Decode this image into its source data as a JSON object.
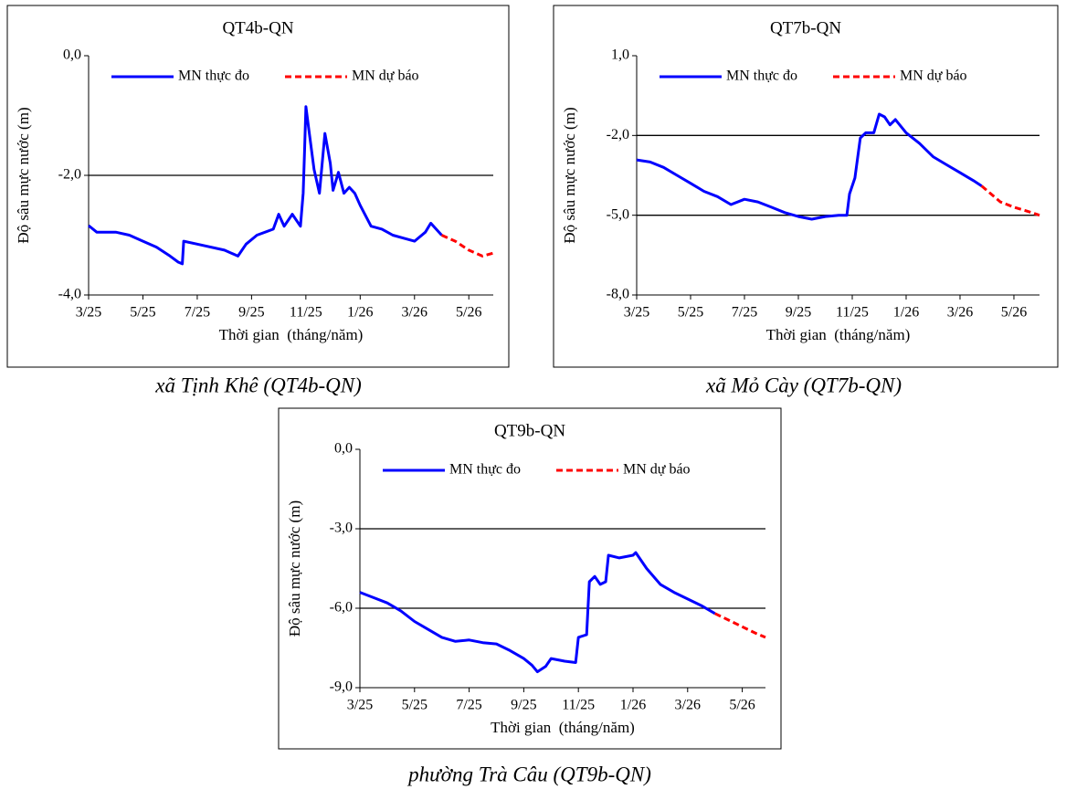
{
  "chart_data": [
    {
      "type": "line",
      "title": "QT4b-QN",
      "caption": "xã Tịnh Khê (QT4b-QN)",
      "x_label": "Thời gian  (tháng/năm)",
      "y_label": "Độ sâu mực nước (m)",
      "xlim": [
        0,
        14.9
      ],
      "xticks": [
        {
          "value": 0,
          "label": "3/25"
        },
        {
          "value": 2,
          "label": "5/25"
        },
        {
          "value": 4,
          "label": "7/25"
        },
        {
          "value": 6,
          "label": "9/25"
        },
        {
          "value": 8,
          "label": "11/25"
        },
        {
          "value": 10,
          "label": "1/26"
        },
        {
          "value": 12,
          "label": "3/26"
        },
        {
          "value": 14,
          "label": "5/26"
        }
      ],
      "ylim": [
        -4,
        0
      ],
      "yticks": [
        {
          "value": -4,
          "label": "-4,0"
        },
        {
          "value": -2,
          "label": "-2,0"
        },
        {
          "value": 0,
          "label": "0,0"
        }
      ],
      "grid": true,
      "series": [
        {
          "name": "MN thực đo",
          "color": "#0000ff",
          "style": "solid",
          "x": [
            0,
            0.3,
            1,
            1.5,
            2,
            2.5,
            3,
            3.3,
            3.45,
            3.5,
            4,
            5,
            5.5,
            5.8,
            6.2,
            6.8,
            7,
            7.2,
            7.5,
            7.8,
            7.9,
            7.95,
            8.0,
            8.1,
            8.3,
            8.5,
            8.7,
            8.9,
            9.0,
            9.2,
            9.4,
            9.6,
            9.8,
            10.0,
            10.4,
            10.8,
            11.2,
            11.6,
            12,
            12.4,
            12.6,
            13.0
          ],
          "values": [
            -2.84,
            -2.95,
            -2.95,
            -3.0,
            -3.1,
            -3.2,
            -3.35,
            -3.45,
            -3.48,
            -3.1,
            -3.15,
            -3.25,
            -3.35,
            -3.15,
            -3.0,
            -2.9,
            -2.65,
            -2.85,
            -2.65,
            -2.85,
            -2.3,
            -1.6,
            -0.85,
            -1.2,
            -1.9,
            -2.3,
            -1.3,
            -1.8,
            -2.25,
            -1.95,
            -2.3,
            -2.2,
            -2.3,
            -2.5,
            -2.85,
            -2.9,
            -3.0,
            -3.05,
            -3.1,
            -2.95,
            -2.8,
            -3.0
          ]
        },
        {
          "name": "MN dự báo",
          "color": "#ff0000",
          "style": "dashed",
          "x": [
            13.0,
            13.5,
            14,
            14.5,
            14.9
          ],
          "values": [
            -3.0,
            -3.1,
            -3.25,
            -3.35,
            -3.3
          ]
        }
      ]
    },
    {
      "type": "line",
      "title": "QT7b-QN",
      "caption": "xã Mỏ Cày (QT7b-QN)",
      "x_label": "Thời gian  (tháng/năm)",
      "y_label": "Độ sâu mực nước (m)",
      "xlim": [
        0,
        14.95
      ],
      "xticks": [
        {
          "value": 0,
          "label": "3/25"
        },
        {
          "value": 2,
          "label": "5/25"
        },
        {
          "value": 4,
          "label": "7/25"
        },
        {
          "value": 6,
          "label": "9/25"
        },
        {
          "value": 8,
          "label": "11/25"
        },
        {
          "value": 10,
          "label": "1/26"
        },
        {
          "value": 12,
          "label": "3/26"
        },
        {
          "value": 14,
          "label": "5/26"
        }
      ],
      "ylim": [
        -8,
        1
      ],
      "yticks": [
        {
          "value": -8,
          "label": "-8,0"
        },
        {
          "value": -5,
          "label": "-5,0"
        },
        {
          "value": -2,
          "label": "-2,0"
        },
        {
          "value": 1,
          "label": "1,0"
        }
      ],
      "grid": true,
      "series": [
        {
          "name": "MN thực đo",
          "color": "#0000ff",
          "style": "solid",
          "x": [
            0,
            0.5,
            1,
            1.5,
            2,
            2.5,
            3,
            3.5,
            4,
            4.5,
            5,
            5.5,
            6,
            6.5,
            7,
            7.5,
            7.8,
            7.9,
            8.1,
            8.3,
            8.5,
            8.8,
            9.0,
            9.2,
            9.4,
            9.6,
            10,
            10.5,
            11,
            11.5,
            12,
            12.5,
            12.8
          ],
          "values": [
            -2.92,
            -3.0,
            -3.2,
            -3.5,
            -3.8,
            -4.1,
            -4.3,
            -4.6,
            -4.4,
            -4.5,
            -4.7,
            -4.9,
            -5.05,
            -5.15,
            -5.05,
            -5.0,
            -5.0,
            -4.2,
            -3.6,
            -2.1,
            -1.9,
            -1.9,
            -1.2,
            -1.3,
            -1.6,
            -1.4,
            -1.9,
            -2.3,
            -2.8,
            -3.1,
            -3.4,
            -3.7,
            -3.9
          ]
        },
        {
          "name": "MN dự báo",
          "color": "#ff0000",
          "style": "dashed",
          "x": [
            12.8,
            13.5,
            14,
            14.5,
            14.95
          ],
          "values": [
            -3.9,
            -4.5,
            -4.7,
            -4.85,
            -5.0
          ]
        }
      ]
    },
    {
      "type": "line",
      "title": "QT9b-QN",
      "caption": "phường Trà Câu (QT9b-QN)",
      "x_label": "Thời gian  (tháng/năm)",
      "y_label": "Độ sâu mực nước (m)",
      "xlim": [
        0,
        14.85
      ],
      "xticks": [
        {
          "value": 0,
          "label": "3/25"
        },
        {
          "value": 2,
          "label": "5/25"
        },
        {
          "value": 4,
          "label": "7/25"
        },
        {
          "value": 6,
          "label": "9/25"
        },
        {
          "value": 8,
          "label": "11/25"
        },
        {
          "value": 10,
          "label": "1/26"
        },
        {
          "value": 12,
          "label": "3/26"
        },
        {
          "value": 14,
          "label": "5/26"
        }
      ],
      "ylim": [
        -9,
        0
      ],
      "yticks": [
        {
          "value": -9,
          "label": "-9,0"
        },
        {
          "value": -6,
          "label": "-6,0"
        },
        {
          "value": -3,
          "label": "-3,0"
        },
        {
          "value": 0,
          "label": "0,0"
        }
      ],
      "grid": true,
      "series": [
        {
          "name": "MN thực đo",
          "color": "#0000ff",
          "style": "solid",
          "x": [
            0,
            0.5,
            1,
            1.5,
            2,
            2.5,
            3,
            3.5,
            4,
            4.5,
            5,
            5.5,
            6,
            6.3,
            6.5,
            6.8,
            7,
            7.5,
            7.9,
            8.0,
            8.3,
            8.4,
            8.6,
            8.8,
            9.0,
            9.1,
            9.5,
            10,
            10.1,
            10.5,
            11,
            11.5,
            12,
            12.5,
            13
          ],
          "values": [
            -5.4,
            -5.6,
            -5.8,
            -6.1,
            -6.5,
            -6.8,
            -7.1,
            -7.25,
            -7.2,
            -7.3,
            -7.35,
            -7.6,
            -7.9,
            -8.15,
            -8.4,
            -8.2,
            -7.9,
            -8.0,
            -8.05,
            -7.1,
            -7.0,
            -5.0,
            -4.8,
            -5.1,
            -5.0,
            -4.0,
            -4.1,
            -4.0,
            -3.9,
            -4.5,
            -5.1,
            -5.4,
            -5.65,
            -5.9,
            -6.2
          ]
        },
        {
          "name": "MN dự báo",
          "color": "#ff0000",
          "style": "dashed",
          "x": [
            13,
            13.5,
            14,
            14.5,
            14.85
          ],
          "values": [
            -6.2,
            -6.45,
            -6.7,
            -6.95,
            -7.1
          ]
        }
      ]
    }
  ]
}
